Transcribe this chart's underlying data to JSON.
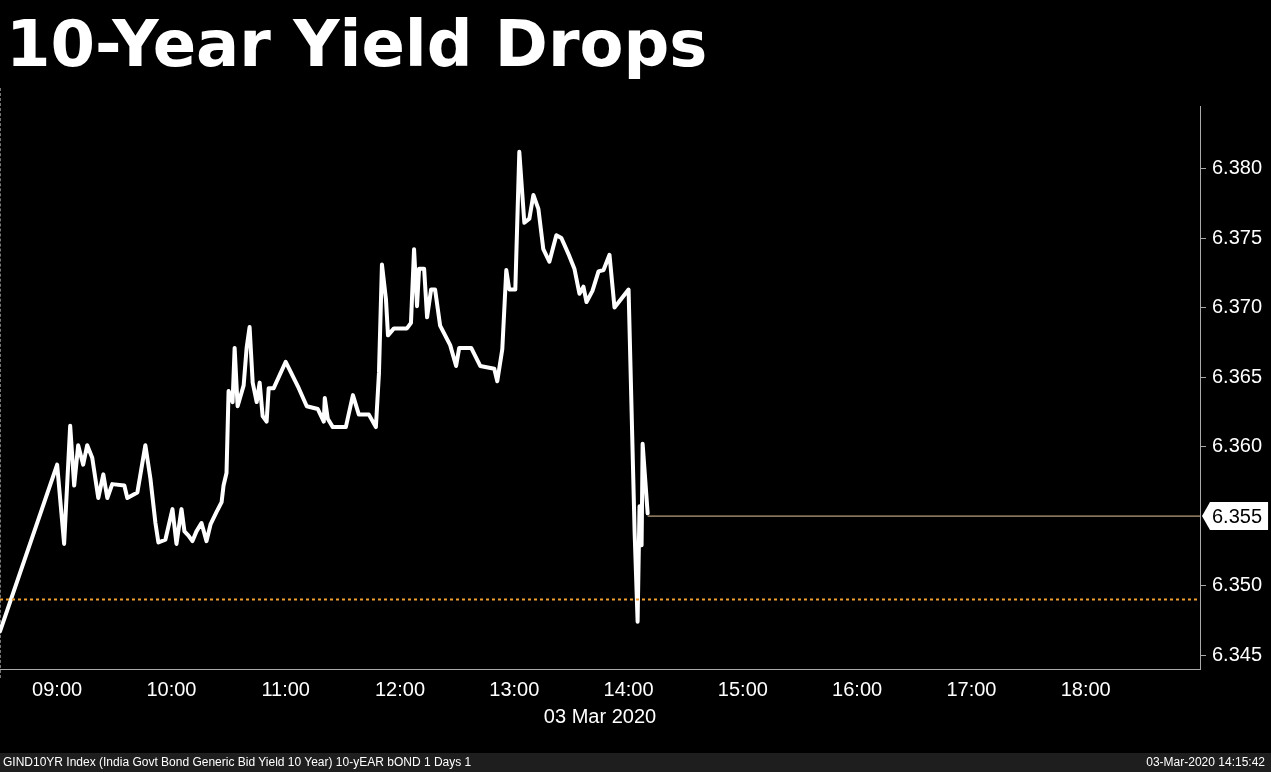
{
  "chart_data": {
    "type": "line",
    "title": "10-Year Yield Drops",
    "xlabel": "03 Mar 2020",
    "x": [
      8.5,
      9.0,
      9.061,
      9.114,
      9.149,
      9.184,
      9.228,
      9.263,
      9.307,
      9.36,
      9.404,
      9.439,
      9.482,
      9.588,
      9.614,
      9.702,
      9.772,
      9.816,
      9.86,
      9.886,
      9.947,
      10.009,
      10.044,
      10.088,
      10.114,
      10.149,
      10.184,
      10.219,
      10.263,
      10.307,
      10.342,
      10.395,
      10.439,
      10.456,
      10.482,
      10.5,
      10.535,
      10.553,
      10.579,
      10.632,
      10.658,
      10.684,
      10.711,
      10.746,
      10.772,
      10.798,
      10.833,
      10.851,
      10.895,
      11.0,
      11.114,
      11.184,
      11.281,
      11.333,
      11.342,
      11.368,
      11.412,
      11.526,
      11.588,
      11.64,
      11.728,
      11.789,
      11.816,
      11.842,
      11.877,
      11.895,
      11.947,
      12.061,
      12.096,
      12.123,
      12.149,
      12.167,
      12.211,
      12.237,
      12.272,
      12.307,
      12.351,
      12.439,
      12.491,
      12.518,
      12.623,
      12.702,
      12.825,
      12.851,
      12.895,
      12.93,
      12.956,
      13.009,
      13.044,
      13.088,
      13.132,
      13.167,
      13.211,
      13.254,
      13.307,
      13.368,
      13.412,
      13.482,
      13.526,
      13.57,
      13.605,
      13.632,
      13.684,
      13.737,
      13.781,
      13.833,
      13.877,
      14.0,
      14.053,
      14.079,
      14.096,
      14.114,
      14.123,
      14.167
    ],
    "series": [
      {
        "color": "#ffffff",
        "values": [
          6.3467,
          6.3587,
          6.353,
          6.3615,
          6.3572,
          6.3601,
          6.3587,
          6.3601,
          6.3592,
          6.3563,
          6.358,
          6.3563,
          6.3573,
          6.3572,
          6.3563,
          6.3567,
          6.3601,
          6.3577,
          6.3545,
          6.3531,
          6.3533,
          6.3555,
          6.353,
          6.3555,
          6.3539,
          6.3536,
          6.3532,
          6.3539,
          6.3545,
          6.3532,
          6.3544,
          6.3553,
          6.356,
          6.3572,
          6.3581,
          6.364,
          6.3632,
          6.3671,
          6.3629,
          6.3644,
          6.3671,
          6.3686,
          6.3646,
          6.3632,
          6.3646,
          6.3622,
          6.3618,
          6.3642,
          6.3642,
          6.3661,
          6.3642,
          6.3629,
          6.3627,
          6.3618,
          6.3635,
          6.362,
          6.3614,
          6.3614,
          6.3637,
          6.3623,
          6.3623,
          6.3614,
          6.3653,
          6.3731,
          6.3706,
          6.368,
          6.3685,
          6.3685,
          6.3689,
          6.3742,
          6.3701,
          6.3728,
          6.3728,
          6.3693,
          6.3713,
          6.3713,
          6.3687,
          6.3673,
          6.3658,
          6.3671,
          6.3671,
          6.3658,
          6.3656,
          6.3647,
          6.367,
          6.3727,
          6.3713,
          6.3713,
          6.3812,
          6.3761,
          6.3764,
          6.3781,
          6.3771,
          6.3742,
          6.3733,
          6.3752,
          6.375,
          6.3737,
          6.3728,
          6.371,
          6.3715,
          6.3704,
          6.3712,
          6.3726,
          6.3727,
          6.3738,
          6.37,
          6.3713,
          6.3538,
          6.3474,
          6.3557,
          6.3529,
          6.3602,
          6.3552
        ]
      }
    ],
    "xlim": [
      8.5,
      19.0
    ],
    "xticks": [
      {
        "value": 9,
        "label": "09:00"
      },
      {
        "value": 10,
        "label": "10:00"
      },
      {
        "value": 11,
        "label": "11:00"
      },
      {
        "value": 12,
        "label": "12:00"
      },
      {
        "value": 13,
        "label": "13:00"
      },
      {
        "value": 14,
        "label": "14:00"
      },
      {
        "value": 15,
        "label": "15:00"
      },
      {
        "value": 16,
        "label": "16:00"
      },
      {
        "value": 17,
        "label": "17:00"
      },
      {
        "value": 18,
        "label": "18:00"
      }
    ],
    "ylim": [
      6.344,
      6.3845
    ],
    "yticks": [
      {
        "value": 6.345,
        "label": "6.345"
      },
      {
        "value": 6.35,
        "label": "6.350"
      },
      {
        "value": 6.36,
        "label": "6.360"
      },
      {
        "value": 6.365,
        "label": "6.365"
      },
      {
        "value": 6.37,
        "label": "6.370"
      },
      {
        "value": 6.375,
        "label": "6.375"
      },
      {
        "value": 6.38,
        "label": "6.380"
      }
    ],
    "ref_lines": [
      {
        "axis": "y",
        "value": 6.349,
        "color": "#f0a030",
        "line_style": "dotted"
      },
      {
        "axis": "y",
        "value": 6.355,
        "label": "6.355",
        "color": "#e8c8a0",
        "line_style": "solid"
      }
    ],
    "annotations": [
      "GIND10YR Index (India Govt Bond Generic Bid Yield 10 Year) 10-yEAR bOND 1 Days 1",
      "03-Mar-2020 14:15:42"
    ]
  }
}
